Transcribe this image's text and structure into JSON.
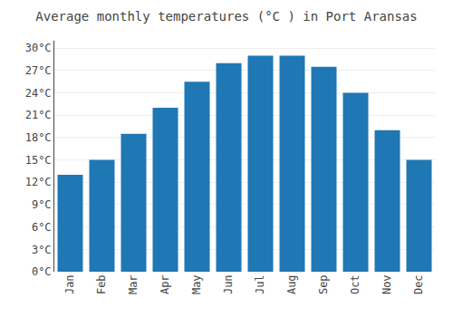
{
  "chart_data": {
    "type": "bar",
    "title": "Average monthly temperatures (°C ) in Port Aransas",
    "categories": [
      "Jan",
      "Feb",
      "Mar",
      "Apr",
      "May",
      "Jun",
      "Jul",
      "Aug",
      "Sep",
      "Oct",
      "Nov",
      "Dec"
    ],
    "values": [
      13,
      15,
      18.5,
      22,
      25.5,
      28,
      29,
      29,
      27.5,
      24,
      19,
      15
    ],
    "ylim": [
      0,
      31
    ],
    "yticks": [
      {
        "value": 0,
        "label": "0°C"
      },
      {
        "value": 3,
        "label": "3°C"
      },
      {
        "value": 6,
        "label": "6°C"
      },
      {
        "value": 9,
        "label": "9°C"
      },
      {
        "value": 12,
        "label": "12°C"
      },
      {
        "value": 15,
        "label": "15°C"
      },
      {
        "value": 18,
        "label": "18°C"
      },
      {
        "value": 21,
        "label": "21°C"
      },
      {
        "value": 24,
        "label": "24°C"
      },
      {
        "value": 27,
        "label": "27°C"
      },
      {
        "value": 30,
        "label": "30°C"
      }
    ],
    "grid": true
  }
}
